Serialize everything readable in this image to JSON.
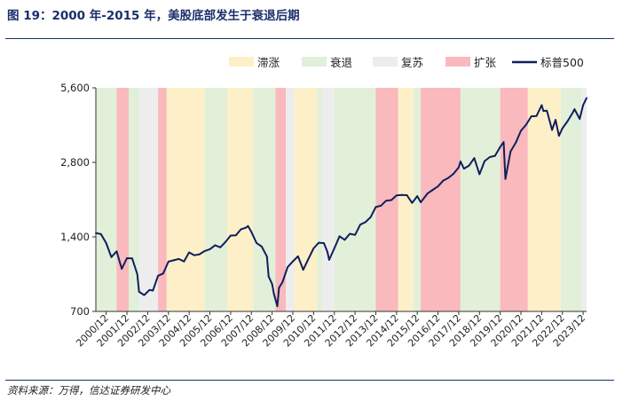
{
  "title": "图 19：2000 年-2015 年，美股底部发生于衰退后期",
  "source": "资料来源：万得，信达证券研发中心",
  "chart_data": {
    "type": "line",
    "title": "图 19：2000 年-2015 年，美股底部发生于衰退后期",
    "xlabel": "",
    "ylabel": "",
    "y_scale": "log",
    "ylim": [
      700,
      5600
    ],
    "y_ticks": [
      700,
      1400,
      2800,
      5600
    ],
    "y_tick_labels": [
      "700",
      "1,400",
      "2,800",
      "5,600"
    ],
    "x_range": [
      "2000-06",
      "2024-02"
    ],
    "x_tick_labels": [
      "2000/12",
      "2001/12",
      "2002/12",
      "2003/12",
      "2004/12",
      "2005/12",
      "2006/12",
      "2007/12",
      "2008/12",
      "2009/12",
      "2010/12",
      "2011/12",
      "2012/12",
      "2013/12",
      "2014/12",
      "2015/12",
      "2016/12",
      "2017/12",
      "2018/12",
      "2019/12",
      "2020/12",
      "2021/12",
      "2022/12",
      "2023/12"
    ],
    "legend": {
      "position": "top-right",
      "items": [
        {
          "name": "滞涨",
          "kind": "patch",
          "color": "#fdf0c8"
        },
        {
          "name": "衰退",
          "kind": "patch",
          "color": "#e2efd9"
        },
        {
          "name": "复苏",
          "kind": "patch",
          "color": "#ededed"
        },
        {
          "name": "扩张",
          "kind": "patch",
          "color": "#f9b9bd"
        },
        {
          "name": "标普500",
          "kind": "line",
          "color": "#0f1f5c"
        }
      ]
    },
    "phases": [
      {
        "phase": "衰退",
        "start": "2000-06",
        "end": "2001-06"
      },
      {
        "phase": "扩张",
        "start": "2001-06",
        "end": "2002-01"
      },
      {
        "phase": "衰退",
        "start": "2002-01",
        "end": "2002-07"
      },
      {
        "phase": "复苏",
        "start": "2002-07",
        "end": "2003-06"
      },
      {
        "phase": "扩张",
        "start": "2003-06",
        "end": "2003-11"
      },
      {
        "phase": "滞涨",
        "start": "2003-11",
        "end": "2005-09"
      },
      {
        "phase": "衰退",
        "start": "2005-09",
        "end": "2006-10"
      },
      {
        "phase": "滞涨",
        "start": "2006-10",
        "end": "2008-01"
      },
      {
        "phase": "衰退",
        "start": "2008-01",
        "end": "2009-02"
      },
      {
        "phase": "扩张",
        "start": "2009-02",
        "end": "2009-08"
      },
      {
        "phase": "复苏",
        "start": "2009-08",
        "end": "2010-01"
      },
      {
        "phase": "滞涨",
        "start": "2010-01",
        "end": "2011-02"
      },
      {
        "phase": "衰退",
        "start": "2011-02",
        "end": "2011-05"
      },
      {
        "phase": "复苏",
        "start": "2011-05",
        "end": "2011-12"
      },
      {
        "phase": "衰退",
        "start": "2011-12",
        "end": "2013-12"
      },
      {
        "phase": "扩张",
        "start": "2013-12",
        "end": "2015-01"
      },
      {
        "phase": "滞涨",
        "start": "2015-01",
        "end": "2015-10"
      },
      {
        "phase": "衰退",
        "start": "2015-10",
        "end": "2016-02"
      },
      {
        "phase": "扩张",
        "start": "2016-02",
        "end": "2018-01"
      },
      {
        "phase": "衰退",
        "start": "2018-01",
        "end": "2019-12"
      },
      {
        "phase": "扩张",
        "start": "2019-12",
        "end": "2021-04"
      },
      {
        "phase": "滞涨",
        "start": "2021-04",
        "end": "2022-11"
      },
      {
        "phase": "衰退",
        "start": "2022-11",
        "end": "2023-11"
      },
      {
        "phase": "复苏",
        "start": "2023-11",
        "end": "2024-02"
      }
    ],
    "series": [
      {
        "name": "标普500",
        "color": "#0f1f5c",
        "points": [
          [
            "2000-06",
            1450
          ],
          [
            "2000-09",
            1436
          ],
          [
            "2000-12",
            1320
          ],
          [
            "2001-03",
            1160
          ],
          [
            "2001-06",
            1224
          ],
          [
            "2001-09",
            1040
          ],
          [
            "2001-12",
            1148
          ],
          [
            "2002-03",
            1147
          ],
          [
            "2002-06",
            990
          ],
          [
            "2002-07",
            840
          ],
          [
            "2002-10",
            815
          ],
          [
            "2003-01",
            855
          ],
          [
            "2003-03",
            850
          ],
          [
            "2003-06",
            975
          ],
          [
            "2003-09",
            996
          ],
          [
            "2003-12",
            1112
          ],
          [
            "2004-03",
            1126
          ],
          [
            "2004-06",
            1140
          ],
          [
            "2004-09",
            1114
          ],
          [
            "2004-12",
            1212
          ],
          [
            "2005-03",
            1180
          ],
          [
            "2005-06",
            1191
          ],
          [
            "2005-09",
            1228
          ],
          [
            "2005-12",
            1248
          ],
          [
            "2006-03",
            1295
          ],
          [
            "2006-06",
            1270
          ],
          [
            "2006-09",
            1335
          ],
          [
            "2006-12",
            1418
          ],
          [
            "2007-03",
            1420
          ],
          [
            "2007-06",
            1503
          ],
          [
            "2007-09",
            1527
          ],
          [
            "2007-10",
            1549
          ],
          [
            "2007-12",
            1468
          ],
          [
            "2008-03",
            1322
          ],
          [
            "2008-06",
            1280
          ],
          [
            "2008-09",
            1166
          ],
          [
            "2008-10",
            968
          ],
          [
            "2008-12",
            903
          ],
          [
            "2009-01",
            825
          ],
          [
            "2009-03",
            735
          ],
          [
            "2009-04",
            872
          ],
          [
            "2009-06",
            919
          ],
          [
            "2009-09",
            1057
          ],
          [
            "2009-12",
            1115
          ],
          [
            "2010-03",
            1169
          ],
          [
            "2010-06",
            1031
          ],
          [
            "2010-09",
            1141
          ],
          [
            "2010-12",
            1258
          ],
          [
            "2011-03",
            1326
          ],
          [
            "2011-06",
            1321
          ],
          [
            "2011-08",
            1218
          ],
          [
            "2011-09",
            1131
          ],
          [
            "2011-12",
            1258
          ],
          [
            "2012-03",
            1408
          ],
          [
            "2012-06",
            1362
          ],
          [
            "2012-09",
            1441
          ],
          [
            "2012-12",
            1426
          ],
          [
            "2013-03",
            1569
          ],
          [
            "2013-06",
            1606
          ],
          [
            "2013-09",
            1682
          ],
          [
            "2013-12",
            1848
          ],
          [
            "2014-03",
            1872
          ],
          [
            "2014-06",
            1960
          ],
          [
            "2014-09",
            1972
          ],
          [
            "2014-12",
            2059
          ],
          [
            "2015-03",
            2068
          ],
          [
            "2015-06",
            2063
          ],
          [
            "2015-09",
            1920
          ],
          [
            "2015-12",
            2044
          ],
          [
            "2016-02",
            1932
          ],
          [
            "2016-06",
            2099
          ],
          [
            "2016-09",
            2168
          ],
          [
            "2016-12",
            2239
          ],
          [
            "2017-03",
            2363
          ],
          [
            "2017-06",
            2423
          ],
          [
            "2017-09",
            2519
          ],
          [
            "2017-12",
            2674
          ],
          [
            "2018-01",
            2824
          ],
          [
            "2018-03",
            2641
          ],
          [
            "2018-06",
            2718
          ],
          [
            "2018-09",
            2914
          ],
          [
            "2018-12",
            2507
          ],
          [
            "2019-03",
            2834
          ],
          [
            "2019-06",
            2942
          ],
          [
            "2019-09",
            2977
          ],
          [
            "2019-12",
            3231
          ],
          [
            "2020-02",
            3380
          ],
          [
            "2020-03",
            2400
          ],
          [
            "2020-06",
            3100
          ],
          [
            "2020-09",
            3363
          ],
          [
            "2020-12",
            3756
          ],
          [
            "2021-03",
            3973
          ],
          [
            "2021-06",
            4297
          ],
          [
            "2021-09",
            4308
          ],
          [
            "2021-12",
            4766
          ],
          [
            "2022-01",
            4515
          ],
          [
            "2022-03",
            4530
          ],
          [
            "2022-06",
            3785
          ],
          [
            "2022-08",
            4158
          ],
          [
            "2022-10",
            3585
          ],
          [
            "2022-12",
            3840
          ],
          [
            "2023-03",
            4109
          ],
          [
            "2023-06",
            4450
          ],
          [
            "2023-07",
            4589
          ],
          [
            "2023-10",
            4194
          ],
          [
            "2023-12",
            4770
          ],
          [
            "2024-02",
            5096
          ]
        ]
      }
    ]
  }
}
